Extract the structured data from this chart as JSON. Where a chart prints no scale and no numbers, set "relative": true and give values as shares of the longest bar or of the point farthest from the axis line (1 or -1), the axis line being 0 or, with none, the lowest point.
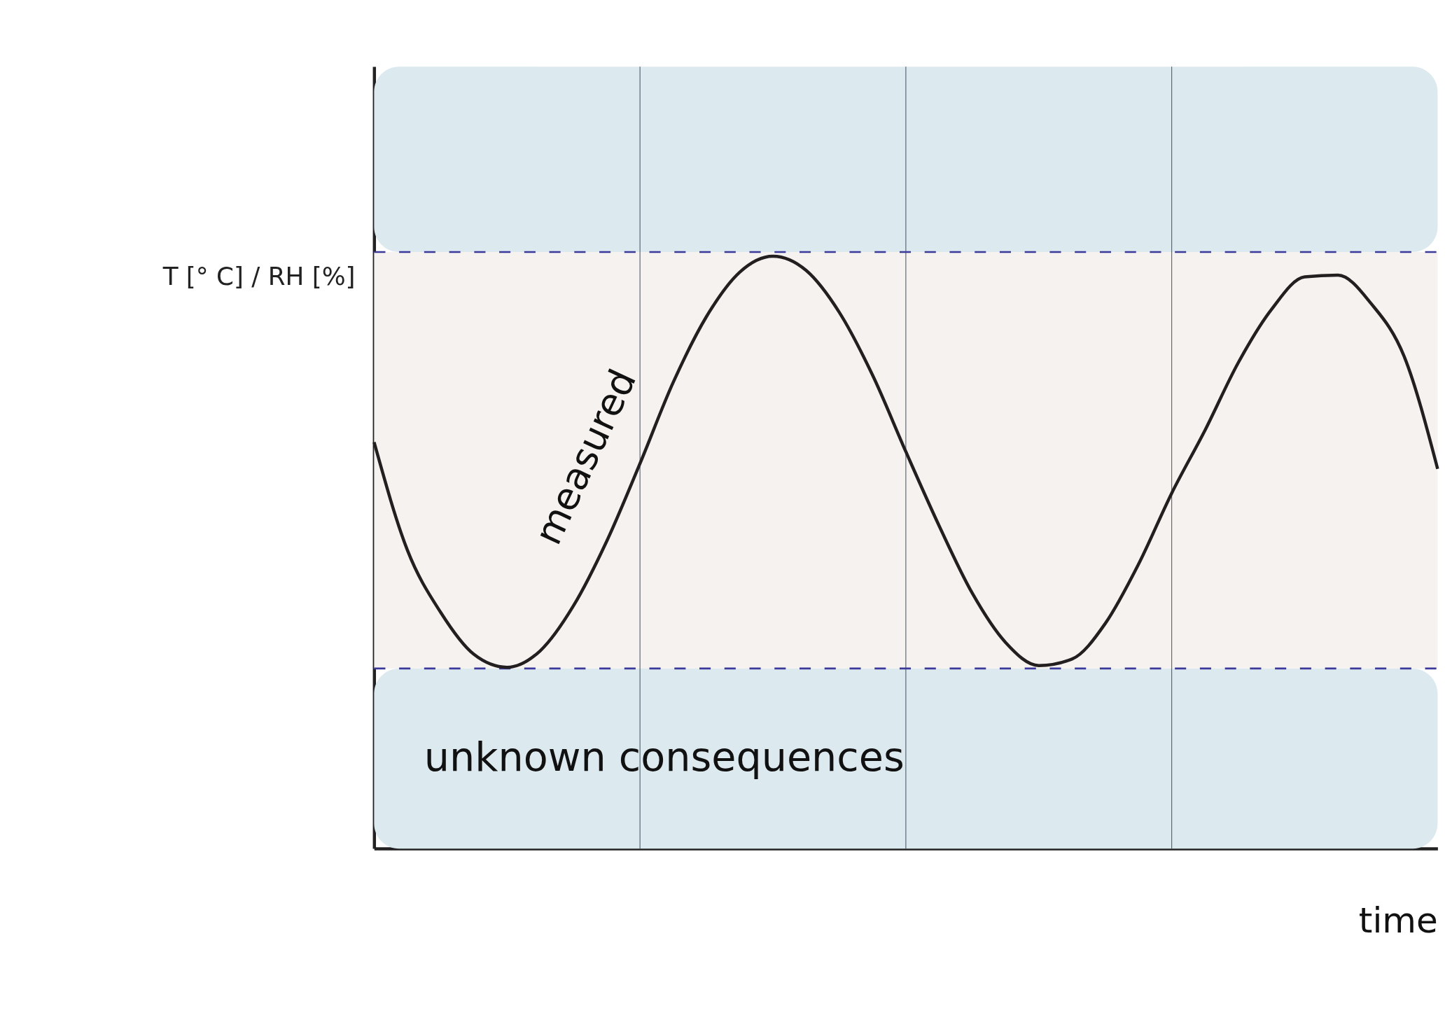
{
  "chart_data": {
    "type": "line",
    "relative": true,
    "xlabel": "time",
    "ylabel": "T [° C] / RH [%]",
    "categories": [
      null,
      null,
      null,
      null,
      null,
      null,
      null,
      null,
      null,
      null,
      null,
      null,
      null,
      null,
      null,
      null,
      null,
      null,
      null,
      null,
      null,
      null,
      null,
      null,
      null,
      null,
      null,
      null,
      null,
      null,
      null,
      null,
      null
    ],
    "series": [
      {
        "color": "#231f20",
        "values": [
          0.686,
          0.504,
          0.399,
          0.328,
          0.306,
          0.334,
          0.41,
          0.519,
          0.65,
          0.787,
          0.898,
          0.973,
          1.0,
          0.976,
          0.905,
          0.799,
          0.67,
          0.545,
          0.431,
          0.348,
          0.309,
          0.32,
          0.38,
          0.48,
          0.6,
          0.706,
          0.82,
          0.91,
          0.965,
          0.968,
          0.92,
          0.83,
          0.641
        ]
      }
    ],
    "bands": [
      {
        "axis": "y",
        "from": 0,
        "to": 0.304,
        "color": "#dceaf0",
        "label": "unknown consequences"
      },
      {
        "axis": "y",
        "from": 0.304,
        "to": 1.007,
        "color": "#f5f2ef"
      },
      {
        "axis": "y",
        "from": 1.007,
        "to": 1.32,
        "color": "#dceaf0"
      }
    ],
    "ref_lines": [
      {
        "axis": "y",
        "value": 0.304,
        "color": "#3b3a9a",
        "line_style": "dashed"
      },
      {
        "axis": "y",
        "value": 1.007,
        "color": "#3b3a9a",
        "line_style": "dashed"
      }
    ],
    "annotations": [
      "measured"
    ],
    "grid": "x",
    "line_style": "solid"
  }
}
